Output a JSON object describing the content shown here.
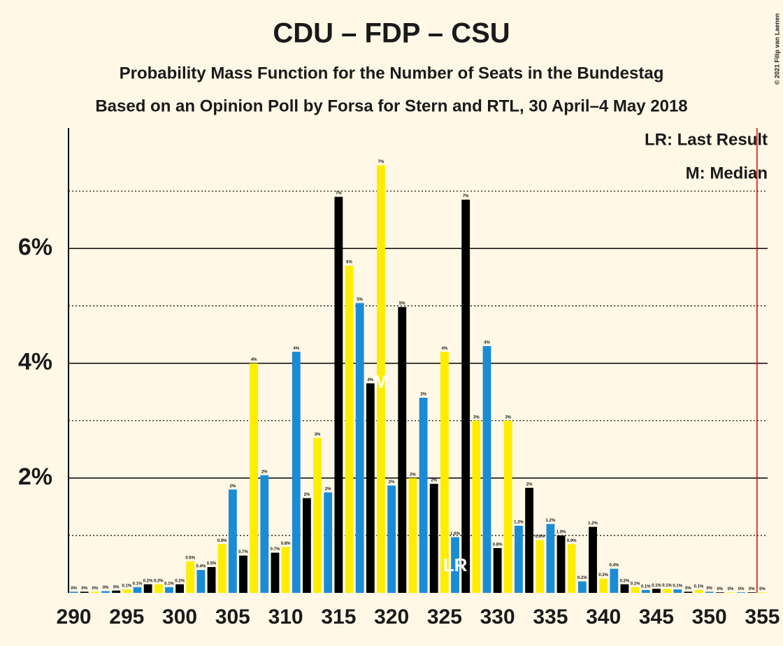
{
  "chart_data": {
    "type": "bar",
    "title": "CDU – FDP – CSU",
    "subtitle": "Probability Mass Function for the Number of Seats in the Bundestag",
    "subtitle2": "Based on an Opinion Poll by Forsa for Stern and RTL, 30 April–4 May 2018",
    "legend": [
      "LR: Last Result",
      "M: Median"
    ],
    "copyright": "© 2021 Filip van Laenen",
    "x": [
      290,
      291,
      292,
      293,
      294,
      295,
      296,
      297,
      298,
      299,
      300,
      301,
      302,
      303,
      304,
      305,
      306,
      307,
      308,
      309,
      310,
      311,
      312,
      313,
      314,
      315,
      316,
      317,
      318,
      319,
      320,
      321,
      322,
      323,
      324,
      325,
      326,
      327,
      328,
      329,
      330,
      331,
      332,
      333,
      334,
      335,
      336,
      337,
      338,
      339,
      340,
      341,
      342,
      343,
      344,
      345,
      346,
      347,
      348,
      349,
      350,
      351,
      352,
      353,
      354,
      355
    ],
    "values": [
      0.02,
      0.02,
      0.02,
      0.03,
      0.04,
      0.06,
      0.1,
      0.15,
      0.15,
      0.1,
      0.15,
      0.55,
      0.4,
      0.45,
      0.85,
      1.8,
      0.65,
      4.0,
      2.05,
      0.7,
      0.8,
      4.2,
      1.65,
      2.7,
      1.75,
      6.9,
      5.7,
      5.05,
      3.65,
      7.45,
      1.87,
      4.98,
      2.0,
      3.4,
      1.9,
      4.2,
      0.97,
      6.85,
      3.0,
      4.3,
      0.78,
      3.0,
      1.17,
      1.83,
      0.92,
      1.2,
      1.0,
      0.85,
      0.2,
      1.15,
      0.25,
      0.42,
      0.15,
      0.1,
      0.05,
      0.07,
      0.07,
      0.06,
      0.02,
      0.05,
      0.02,
      0.01,
      0.01,
      0.01,
      0.01,
      0.01
    ],
    "value_labels": [
      "0%",
      "0%",
      "0%",
      "0%",
      "0%",
      "0.1%",
      "0.1%",
      "0.2%",
      "0.2%",
      "0.1%",
      "0.2%",
      "0.6%",
      "0.4%",
      "0.5%",
      "0.9%",
      "2%",
      "0.7%",
      "4%",
      "2%",
      "0.7%",
      "0.8%",
      "4%",
      "2%",
      "3%",
      "2%",
      "7%",
      "6%",
      "5%",
      "4%",
      "7%",
      "2%",
      "5%",
      "2%",
      "3%",
      "2%",
      "4%",
      "1.0%",
      "7%",
      "3%",
      "4%",
      "0.8%",
      "3%",
      "1.2%",
      "2%",
      "0.9%",
      "1.2%",
      "1.0%",
      "0.9%",
      "0.2%",
      "1.2%",
      "0.3%",
      "0.4%",
      "0.2%",
      "0.1%",
      "0.1%",
      "0.1%",
      "0.1%",
      "0.1%",
      "0%",
      "0.1%",
      "0%",
      "0%",
      "0%",
      "0%",
      "0%",
      "0%"
    ],
    "colors": [
      "#1a8cd6",
      "#000000",
      "#ffed00"
    ],
    "xlim": [
      289.5,
      355.5
    ],
    "xticks": [
      290,
      295,
      300,
      305,
      310,
      315,
      320,
      325,
      330,
      335,
      340,
      345,
      350,
      355
    ],
    "ylim": [
      0,
      8.1
    ],
    "yticks": [
      {
        "value": 2,
        "label": "2%"
      },
      {
        "value": 4,
        "label": "4%"
      },
      {
        "value": 6,
        "label": "6%"
      }
    ],
    "minor_yticks": [
      1,
      3,
      5,
      7
    ],
    "majority_line": 355,
    "majority_color": "#e00000",
    "annotations": [
      {
        "text": "M",
        "x": 319
      },
      {
        "text": "LR",
        "x": 326
      }
    ]
  }
}
